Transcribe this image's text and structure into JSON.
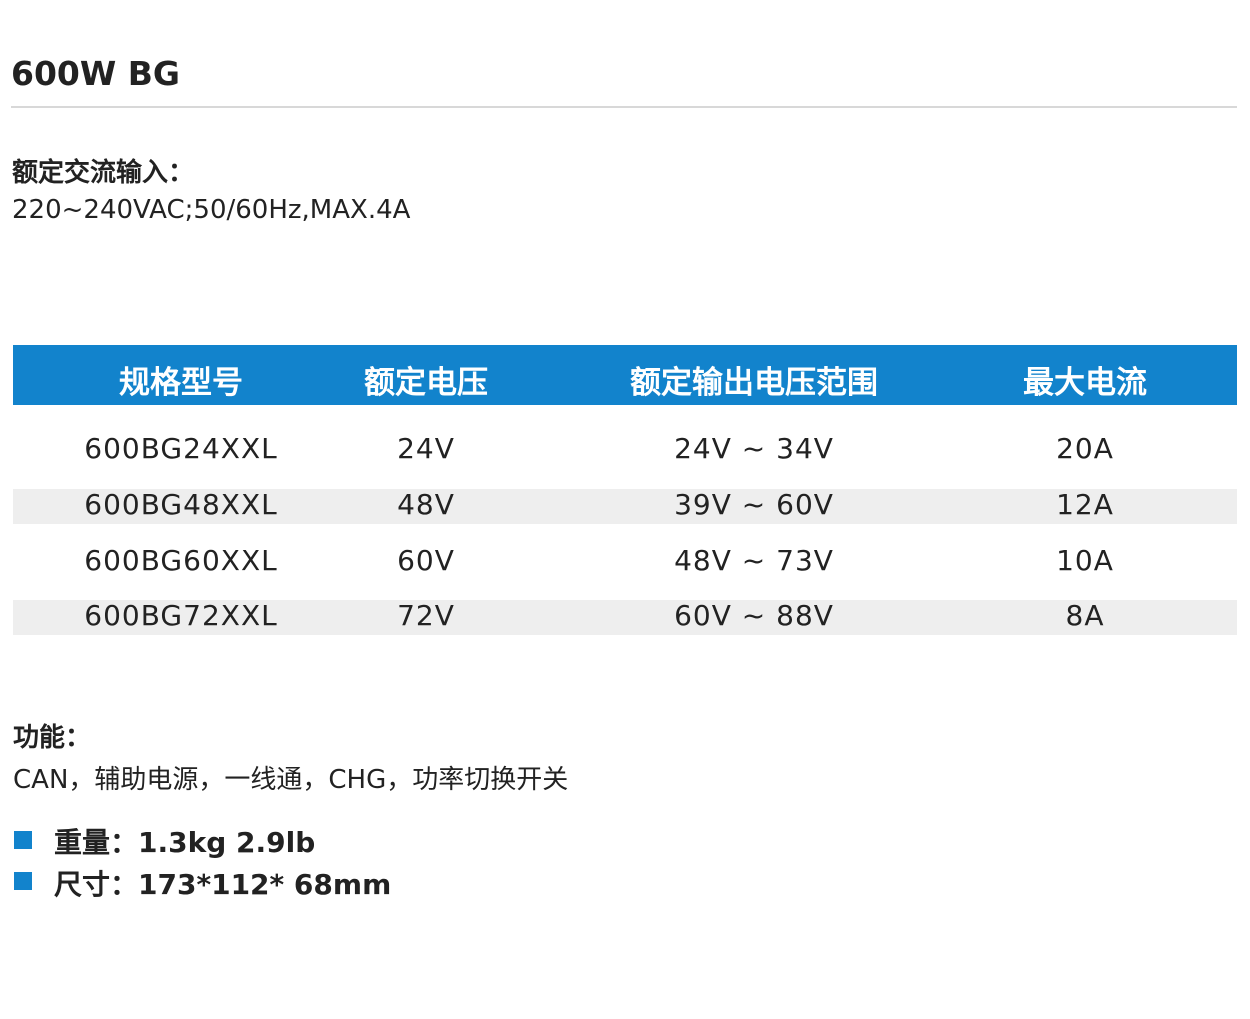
{
  "title": "600W BG",
  "input": {
    "label": "额定交流输入：",
    "value": "220~240VAC;50/60Hz,MAX.4A"
  },
  "table": {
    "headers": [
      "规格型号",
      "额定电压",
      "额定输出电压范围",
      "最大电流"
    ],
    "rows": [
      [
        "600BG24XXL",
        "24V",
        "24V ~ 34V",
        "20A"
      ],
      [
        "600BG48XXL",
        "48V",
        "39V  ~  60V",
        "12A"
      ],
      [
        "600BG60XXL",
        "60V",
        "48V  ~ 73V",
        "10A"
      ],
      [
        "600BG72XXL",
        "72V",
        "60V ~ 88V",
        "8A"
      ]
    ],
    "header_color": "#1283cc"
  },
  "features": {
    "label": "功能：",
    "value": "CAN，辅助电源，一线通，CHG，功率切换开关"
  },
  "specs": [
    {
      "text": "重量：1.3kg  2.9lb"
    },
    {
      "text": "尺寸：173*112* 68mm"
    }
  ]
}
